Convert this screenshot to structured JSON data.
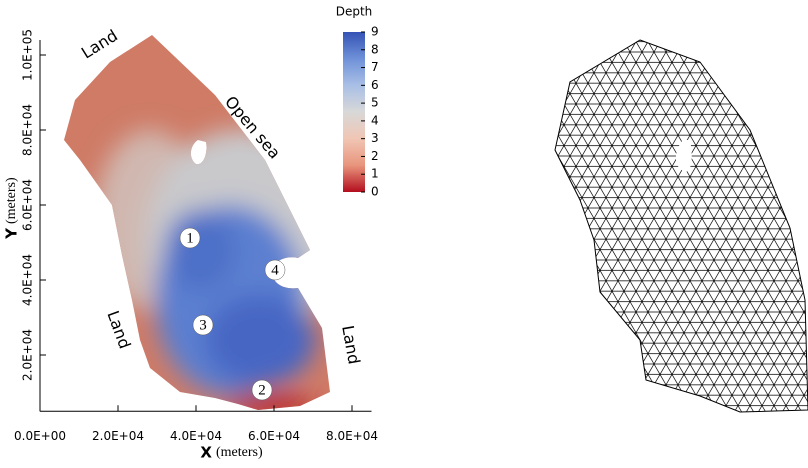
{
  "chart_data": {
    "type": "heatmap",
    "xlabel": "X",
    "xlabel_unit": "(meters)",
    "ylabel": "Y",
    "ylabel_unit": "(meters)",
    "xlim": [
      0,
      85000
    ],
    "ylim": [
      5000,
      104000
    ],
    "xticks": [
      {
        "value": 0,
        "label": "0.0E+00"
      },
      {
        "value": 20000,
        "label": "2.0E+04"
      },
      {
        "value": 40000,
        "label": "4.0E+04"
      },
      {
        "value": 60000,
        "label": "6.0E+04"
      },
      {
        "value": 80000,
        "label": "8.0E+04"
      }
    ],
    "yticks": [
      {
        "value": 20000,
        "label": "2.0E+04"
      },
      {
        "value": 40000,
        "label": "4.0E+04"
      },
      {
        "value": 60000,
        "label": "6.0E+04"
      },
      {
        "value": 80000,
        "label": "8.0E+04"
      },
      {
        "value": 100000,
        "label": "1.0E+05"
      }
    ],
    "colorbar_title": "Depth",
    "clim": [
      0,
      9
    ],
    "cticks": [
      0,
      1,
      2,
      3,
      4,
      5,
      6,
      7,
      8,
      9
    ],
    "colormap": [
      "#b40e1e",
      "#e8957c",
      "#f0c6b4",
      "#d8d8d8",
      "#a9bfe6",
      "#6f91d8",
      "#3553b5"
    ],
    "annotations": [
      "Land",
      "Open sea",
      "Land",
      "Land"
    ],
    "markers": [
      "1",
      "2",
      "3",
      "4"
    ]
  }
}
